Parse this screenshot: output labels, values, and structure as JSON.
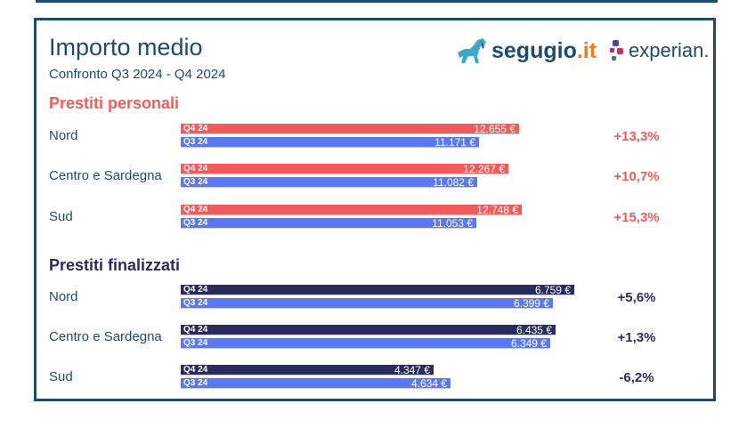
{
  "header": {
    "title": "Importo medio",
    "subtitle": "Confronto Q3 2024 - Q4 2024",
    "logos": {
      "segugio_word": "segugio",
      "segugio_tld": ".it",
      "experian_word": "experian."
    }
  },
  "colors": {
    "personal_q4": "#f25b5b",
    "personal_q3": "#5b78f2",
    "finalized_q4": "#2a2c5e",
    "finalized_q3": "#5b78f2",
    "personal_title": "#f25b5b",
    "finalized_title": "#2a2c5e",
    "delta_personal": "#f25b5b",
    "delta_finalized": "#2a2c5e"
  },
  "chart_data": [
    {
      "type": "bar",
      "title": "Prestiti personali",
      "categories": [
        "Nord",
        "Centro e Sardegna",
        "Sud"
      ],
      "series": [
        {
          "name": "Q4 24",
          "values": [
            12655,
            12267,
            12748
          ],
          "labels": [
            "12.655 €",
            "12.267 €",
            "12.748 €"
          ]
        },
        {
          "name": "Q3 24",
          "values": [
            11171,
            11082,
            11053
          ],
          "labels": [
            "11.171 €",
            "11.082 €",
            "11.053 €"
          ]
        }
      ],
      "deltas": [
        "+13,3%",
        "+10,7%",
        "+15,3%"
      ]
    },
    {
      "type": "bar",
      "title": "Prestiti finalizzati",
      "categories": [
        "Nord",
        "Centro e Sardegna",
        "Sud"
      ],
      "series": [
        {
          "name": "Q4 24",
          "values": [
            6759,
            6435,
            4347
          ],
          "labels": [
            "6.759 €",
            "6.435 €",
            "4.347 €"
          ]
        },
        {
          "name": "Q3 24",
          "values": [
            6399,
            6349,
            4634
          ],
          "labels": [
            "6.399 €",
            "6.349 €",
            "4.634 €"
          ]
        }
      ],
      "deltas": [
        "+5,6%",
        "+1,3%",
        "-6,2%"
      ]
    }
  ]
}
